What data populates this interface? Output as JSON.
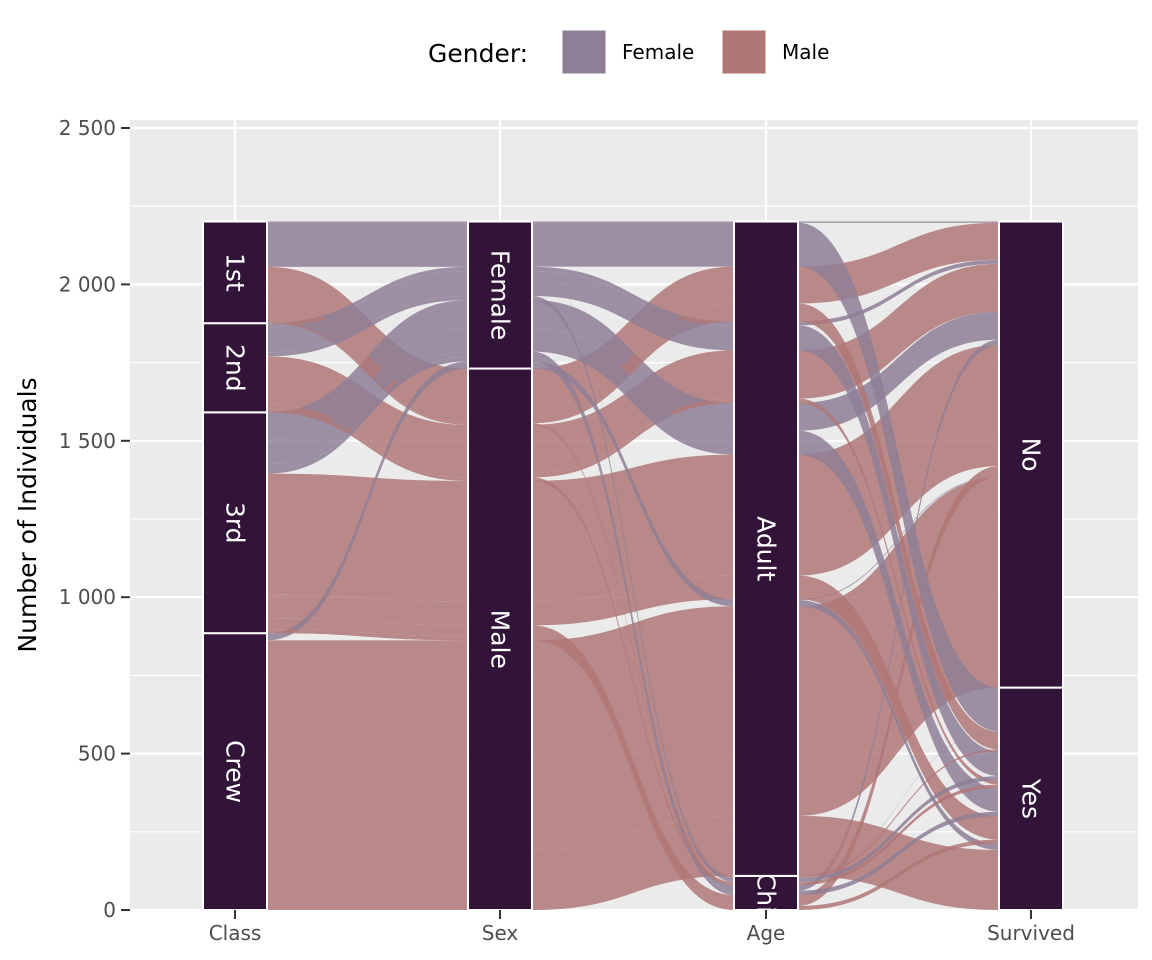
{
  "chart_data": {
    "type": "alluvial",
    "title": "",
    "xlabel": "",
    "ylabel": "Number of Individuals",
    "ylim": [
      0,
      2500
    ],
    "y_ticks": [
      0,
      500,
      1000,
      1500,
      2000,
      2500
    ],
    "y_tick_labels": [
      "0",
      "500",
      "1 000",
      "1 500",
      "2 000",
      "2 500"
    ],
    "axes": [
      "Class",
      "Sex",
      "Age",
      "Survived"
    ],
    "strata": {
      "Class": [
        {
          "name": "Crew",
          "label": "Crew",
          "value": 885
        },
        {
          "name": "3rd",
          "label": "3rd",
          "value": 706
        },
        {
          "name": "2nd",
          "label": "2nd",
          "value": 285
        },
        {
          "name": "1st",
          "label": "1st",
          "value": 325
        }
      ],
      "Sex": [
        {
          "name": "Male",
          "label": "Male",
          "value": 1731
        },
        {
          "name": "Female",
          "label": "Female",
          "value": 470
        }
      ],
      "Age": [
        {
          "name": "Child",
          "label": "Chi",
          "value": 109
        },
        {
          "name": "Adult",
          "label": "Adult",
          "value": 2092
        }
      ],
      "Survived": [
        {
          "name": "Yes",
          "label": "Yes",
          "value": 711
        },
        {
          "name": "No",
          "label": "No",
          "value": 1490
        }
      ]
    },
    "legend": {
      "title": "Gender:",
      "position": "top",
      "entries": [
        {
          "name": "Female",
          "color": "#8e7f96"
        },
        {
          "name": "Male",
          "color": "#b07777"
        }
      ]
    },
    "colors": {
      "stratum_fill": "#321439",
      "stratum_stroke": "#ffffff",
      "panel_bg": "#ebebeb",
      "grid": "#ffffff",
      "tick": "#333333"
    },
    "flows": [
      {
        "Class": "1st",
        "Sex": "Male",
        "Age": "Adult",
        "Survived": "No",
        "fill": "Male",
        "value": 118
      },
      {
        "Class": "2nd",
        "Sex": "Male",
        "Age": "Adult",
        "Survived": "No",
        "fill": "Male",
        "value": 154
      },
      {
        "Class": "3rd",
        "Sex": "Male",
        "Age": "Adult",
        "Survived": "No",
        "fill": "Male",
        "value": 387
      },
      {
        "Class": "Crew",
        "Sex": "Male",
        "Age": "Adult",
        "Survived": "No",
        "fill": "Male",
        "value": 670
      },
      {
        "Class": "1st",
        "Sex": "Female",
        "Age": "Adult",
        "Survived": "No",
        "fill": "Female",
        "value": 4
      },
      {
        "Class": "2nd",
        "Sex": "Female",
        "Age": "Adult",
        "Survived": "No",
        "fill": "Female",
        "value": 13
      },
      {
        "Class": "3rd",
        "Sex": "Female",
        "Age": "Adult",
        "Survived": "No",
        "fill": "Female",
        "value": 89
      },
      {
        "Class": "Crew",
        "Sex": "Female",
        "Age": "Adult",
        "Survived": "No",
        "fill": "Female",
        "value": 3
      },
      {
        "Class": "3rd",
        "Sex": "Male",
        "Age": "Child",
        "Survived": "No",
        "fill": "Male",
        "value": 35
      },
      {
        "Class": "3rd",
        "Sex": "Female",
        "Age": "Child",
        "Survived": "No",
        "fill": "Female",
        "value": 17
      },
      {
        "Class": "1st",
        "Sex": "Male",
        "Age": "Adult",
        "Survived": "Yes",
        "fill": "Male",
        "value": 57
      },
      {
        "Class": "2nd",
        "Sex": "Male",
        "Age": "Adult",
        "Survived": "Yes",
        "fill": "Male",
        "value": 14
      },
      {
        "Class": "3rd",
        "Sex": "Male",
        "Age": "Adult",
        "Survived": "Yes",
        "fill": "Male",
        "value": 75
      },
      {
        "Class": "Crew",
        "Sex": "Male",
        "Age": "Adult",
        "Survived": "Yes",
        "fill": "Male",
        "value": 192
      },
      {
        "Class": "1st",
        "Sex": "Female",
        "Age": "Adult",
        "Survived": "Yes",
        "fill": "Female",
        "value": 140
      },
      {
        "Class": "2nd",
        "Sex": "Female",
        "Age": "Adult",
        "Survived": "Yes",
        "fill": "Female",
        "value": 80
      },
      {
        "Class": "3rd",
        "Sex": "Female",
        "Age": "Adult",
        "Survived": "Yes",
        "fill": "Female",
        "value": 76
      },
      {
        "Class": "Crew",
        "Sex": "Female",
        "Age": "Adult",
        "Survived": "Yes",
        "fill": "Female",
        "value": 20
      },
      {
        "Class": "1st",
        "Sex": "Male",
        "Age": "Child",
        "Survived": "Yes",
        "fill": "Male",
        "value": 5
      },
      {
        "Class": "2nd",
        "Sex": "Male",
        "Age": "Child",
        "Survived": "Yes",
        "fill": "Male",
        "value": 11
      },
      {
        "Class": "3rd",
        "Sex": "Male",
        "Age": "Child",
        "Survived": "Yes",
        "fill": "Male",
        "value": 13
      },
      {
        "Class": "1st",
        "Sex": "Female",
        "Age": "Child",
        "Survived": "Yes",
        "fill": "Female",
        "value": 1
      },
      {
        "Class": "2nd",
        "Sex": "Female",
        "Age": "Child",
        "Survived": "Yes",
        "fill": "Female",
        "value": 13
      },
      {
        "Class": "3rd",
        "Sex": "Female",
        "Age": "Child",
        "Survived": "Yes",
        "fill": "Female",
        "value": 14
      }
    ]
  }
}
